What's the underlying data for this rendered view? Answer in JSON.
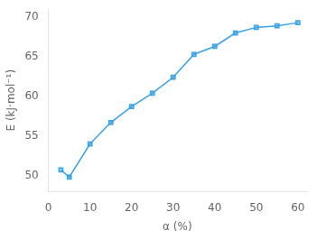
{
  "chart_data": {
    "type": "line",
    "x": [
      3,
      5,
      10,
      15,
      20,
      25,
      30,
      35,
      40,
      45,
      50,
      55,
      60
    ],
    "values": [
      50.7,
      49.8,
      54.0,
      56.7,
      58.7,
      60.4,
      62.4,
      65.3,
      66.3,
      68.0,
      68.7,
      68.9,
      69.3
    ],
    "xlabel": "α (%)",
    "ylabel": "E (kJ·mol⁻¹)",
    "xlim": [
      0,
      62
    ],
    "ylim": [
      48,
      71
    ],
    "xticks": [
      0,
      10,
      20,
      30,
      40,
      50,
      60
    ],
    "yticks": [
      50,
      55,
      60,
      65,
      70
    ],
    "marker": "square",
    "grid": false
  }
}
